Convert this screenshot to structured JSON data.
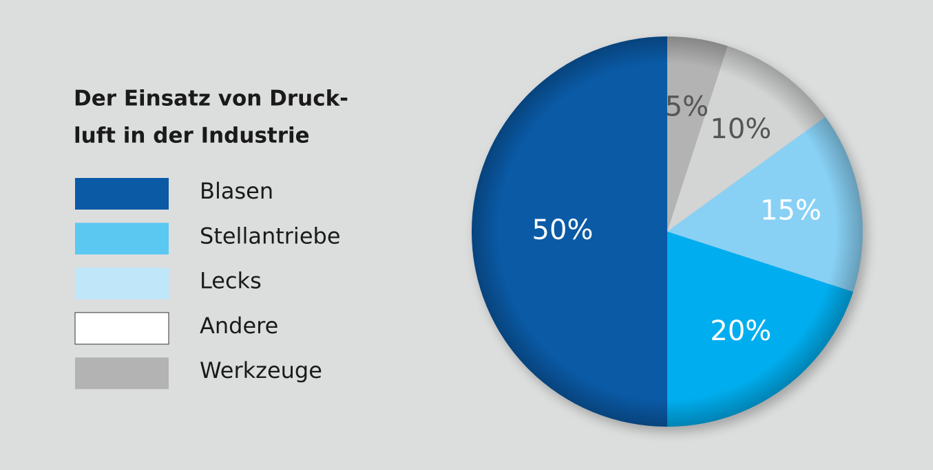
{
  "chart_data": {
    "type": "pie",
    "title": [
      "Der Einsatz von Druck-",
      "luft in der Industrie"
    ],
    "categories": [
      "Blasen",
      "Stellantriebe",
      "Lecks",
      "Andere",
      "Werkzeuge"
    ],
    "values": [
      50,
      20,
      15,
      10,
      5
    ],
    "value_labels": [
      "50%",
      "20%",
      "15%",
      "10%",
      "5%"
    ],
    "colors": [
      "#0a5aa6",
      "#00aeef",
      "#88d1f5",
      "#d3d4d4",
      "#b2b3b2"
    ],
    "legend_colors": [
      "#0a5aa6",
      "#5bc8f2",
      "#bfe6f9",
      "#ffffff",
      "#b2b3b2"
    ],
    "value_label_colors": [
      "#ffffff",
      "#ffffff",
      "#ffffff",
      "#555555",
      "#555555"
    ]
  }
}
